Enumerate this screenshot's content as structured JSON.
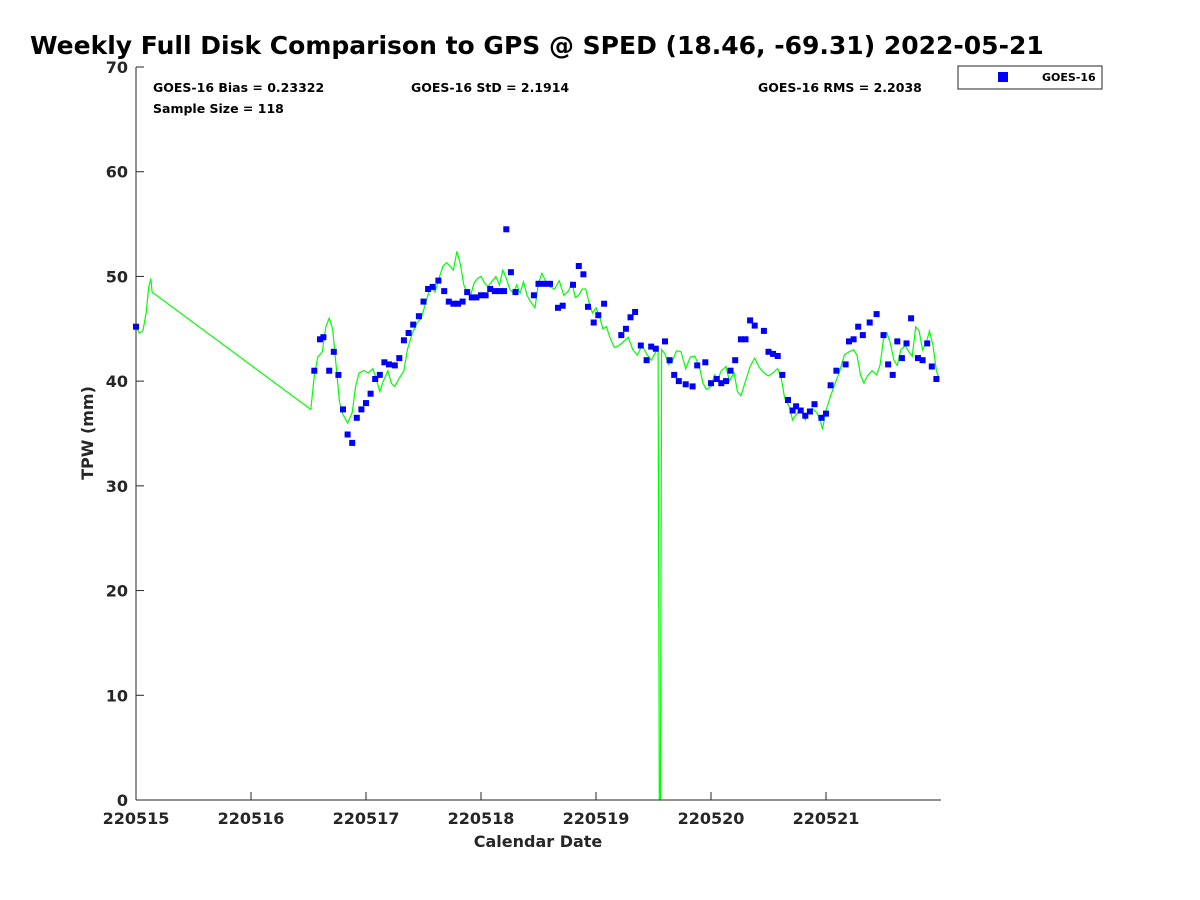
{
  "chart_data": {
    "type": "scatter",
    "title": "Weekly Full Disk Comparison to GPS @ SPED (18.46, -69.31) 2022-05-21",
    "xlabel": "Calendar Date",
    "ylabel": "TPW (mm)",
    "xlim": [
      0,
      7
    ],
    "ylim": [
      0,
      70
    ],
    "x_ticks": [
      0,
      1,
      2,
      3,
      4,
      5,
      6
    ],
    "x_tick_labels": [
      "220515",
      "220516",
      "220517",
      "220518",
      "220519",
      "220520",
      "220521"
    ],
    "y_ticks": [
      0,
      10,
      20,
      30,
      40,
      50,
      60,
      70
    ],
    "y_tick_labels": [
      "0",
      "10",
      "20",
      "30",
      "40",
      "50",
      "60",
      "70"
    ],
    "stats": {
      "bias": "GOES-16 Bias = 0.23322",
      "std": "GOES-16 StD = 2.1914",
      "rms": "GOES-16 RMS = 2.2038",
      "sample_size": "Sample Size = 118"
    },
    "legend": [
      {
        "name": "GOES-16",
        "marker": "square",
        "color": "#0000ff"
      }
    ],
    "series": [
      {
        "name": "GOES-16",
        "kind": "scatter",
        "color": "#0000ff",
        "points": [
          [
            0.0,
            45.2
          ],
          [
            1.55,
            41.0
          ],
          [
            1.6,
            44.0
          ],
          [
            1.63,
            44.2
          ],
          [
            1.68,
            41.0
          ],
          [
            1.72,
            42.8
          ],
          [
            1.76,
            40.6
          ],
          [
            1.8,
            37.3
          ],
          [
            1.84,
            34.9
          ],
          [
            1.88,
            34.1
          ],
          [
            1.92,
            36.5
          ],
          [
            1.96,
            37.3
          ],
          [
            2.0,
            37.9
          ],
          [
            2.04,
            38.8
          ],
          [
            2.08,
            40.2
          ],
          [
            2.12,
            40.6
          ],
          [
            2.16,
            41.8
          ],
          [
            2.2,
            41.6
          ],
          [
            2.25,
            41.5
          ],
          [
            2.29,
            42.2
          ],
          [
            2.33,
            43.9
          ],
          [
            2.37,
            44.6
          ],
          [
            2.41,
            45.4
          ],
          [
            2.46,
            46.2
          ],
          [
            2.5,
            47.6
          ],
          [
            2.54,
            48.8
          ],
          [
            2.58,
            49.0
          ],
          [
            2.63,
            49.6
          ],
          [
            2.68,
            48.6
          ],
          [
            2.72,
            47.6
          ],
          [
            2.76,
            47.4
          ],
          [
            2.8,
            47.4
          ],
          [
            2.84,
            47.6
          ],
          [
            2.88,
            48.5
          ],
          [
            2.92,
            48.0
          ],
          [
            2.96,
            48.0
          ],
          [
            3.0,
            48.2
          ],
          [
            3.04,
            48.2
          ],
          [
            3.08,
            48.8
          ],
          [
            3.12,
            48.6
          ],
          [
            3.16,
            48.6
          ],
          [
            3.2,
            48.6
          ],
          [
            3.22,
            54.5
          ],
          [
            3.26,
            50.4
          ],
          [
            3.3,
            48.5
          ],
          [
            3.46,
            48.2
          ],
          [
            3.5,
            49.3
          ],
          [
            3.55,
            49.3
          ],
          [
            3.6,
            49.3
          ],
          [
            3.67,
            47.0
          ],
          [
            3.71,
            47.2
          ],
          [
            3.8,
            49.2
          ],
          [
            3.85,
            51.0
          ],
          [
            3.89,
            50.2
          ],
          [
            3.93,
            47.1
          ],
          [
            3.98,
            45.6
          ],
          [
            4.02,
            46.3
          ],
          [
            4.07,
            47.4
          ],
          [
            4.22,
            44.4
          ],
          [
            4.26,
            45.0
          ],
          [
            4.3,
            46.1
          ],
          [
            4.34,
            46.6
          ],
          [
            4.39,
            43.4
          ],
          [
            4.44,
            42.0
          ],
          [
            4.48,
            43.3
          ],
          [
            4.52,
            43.1
          ],
          [
            4.6,
            43.8
          ],
          [
            4.64,
            42.0
          ],
          [
            4.68,
            40.6
          ],
          [
            4.72,
            40.0
          ],
          [
            4.78,
            39.7
          ],
          [
            4.84,
            39.5
          ],
          [
            4.88,
            41.5
          ],
          [
            4.95,
            41.8
          ],
          [
            5.0,
            39.8
          ],
          [
            5.05,
            40.2
          ],
          [
            5.09,
            39.8
          ],
          [
            5.13,
            40.0
          ],
          [
            5.17,
            41.0
          ],
          [
            5.21,
            42.0
          ],
          [
            5.26,
            44.0
          ],
          [
            5.3,
            44.0
          ],
          [
            5.34,
            45.8
          ],
          [
            5.38,
            45.3
          ],
          [
            5.46,
            44.8
          ],
          [
            5.5,
            42.8
          ],
          [
            5.54,
            42.6
          ],
          [
            5.58,
            42.4
          ],
          [
            5.62,
            40.6
          ],
          [
            5.67,
            38.2
          ],
          [
            5.71,
            37.2
          ],
          [
            5.74,
            37.6
          ],
          [
            5.78,
            37.2
          ],
          [
            5.82,
            36.7
          ],
          [
            5.86,
            37.1
          ],
          [
            5.9,
            37.8
          ],
          [
            5.96,
            36.5
          ],
          [
            6.0,
            36.9
          ],
          [
            6.04,
            39.6
          ],
          [
            6.09,
            41.0
          ],
          [
            6.17,
            41.6
          ],
          [
            6.2,
            43.8
          ],
          [
            6.24,
            44.0
          ],
          [
            6.28,
            45.2
          ],
          [
            6.32,
            44.4
          ],
          [
            6.38,
            45.6
          ],
          [
            6.44,
            46.4
          ],
          [
            6.5,
            44.4
          ],
          [
            6.54,
            41.6
          ],
          [
            6.58,
            40.6
          ],
          [
            6.62,
            43.8
          ],
          [
            6.66,
            42.2
          ],
          [
            6.7,
            43.6
          ],
          [
            6.74,
            46.0
          ],
          [
            6.8,
            42.2
          ],
          [
            6.84,
            42.0
          ],
          [
            6.88,
            43.6
          ],
          [
            6.92,
            41.4
          ],
          [
            6.96,
            40.2
          ]
        ]
      },
      {
        "name": "GPS",
        "kind": "line",
        "color": "#00ff00",
        "points": [
          [
            0.0,
            45.2
          ],
          [
            0.03,
            44.6
          ],
          [
            0.06,
            44.8
          ],
          [
            0.09,
            46.6
          ],
          [
            0.11,
            49.0
          ],
          [
            0.13,
            49.8
          ],
          [
            0.14,
            48.5
          ],
          [
            1.52,
            37.3
          ],
          [
            1.55,
            40.5
          ],
          [
            1.58,
            42.3
          ],
          [
            1.62,
            42.8
          ],
          [
            1.65,
            45.2
          ],
          [
            1.68,
            46.0
          ],
          [
            1.71,
            45.0
          ],
          [
            1.74,
            41.5
          ],
          [
            1.77,
            38.0
          ],
          [
            1.8,
            36.8
          ],
          [
            1.84,
            36.0
          ],
          [
            1.88,
            37.0
          ],
          [
            1.91,
            39.5
          ],
          [
            1.94,
            40.8
          ],
          [
            1.98,
            41.0
          ],
          [
            2.02,
            40.8
          ],
          [
            2.06,
            41.2
          ],
          [
            2.09,
            40.2
          ],
          [
            2.12,
            39.0
          ],
          [
            2.15,
            40.0
          ],
          [
            2.19,
            41.0
          ],
          [
            2.22,
            39.8
          ],
          [
            2.25,
            39.5
          ],
          [
            2.29,
            40.3
          ],
          [
            2.33,
            41.0
          ],
          [
            2.36,
            43.0
          ],
          [
            2.4,
            44.5
          ],
          [
            2.44,
            45.5
          ],
          [
            2.48,
            46.0
          ],
          [
            2.52,
            47.5
          ],
          [
            2.56,
            49.0
          ],
          [
            2.6,
            48.5
          ],
          [
            2.64,
            50.0
          ],
          [
            2.67,
            51.0
          ],
          [
            2.7,
            51.3
          ],
          [
            2.73,
            51.0
          ],
          [
            2.76,
            50.6
          ],
          [
            2.79,
            52.4
          ],
          [
            2.82,
            51.2
          ],
          [
            2.85,
            49.2
          ],
          [
            2.88,
            48.4
          ],
          [
            2.91,
            48.2
          ],
          [
            2.94,
            49.4
          ],
          [
            2.97,
            49.8
          ],
          [
            3.0,
            50.0
          ],
          [
            3.03,
            49.4
          ],
          [
            3.06,
            49.0
          ],
          [
            3.1,
            49.6
          ],
          [
            3.13,
            50.0
          ],
          [
            3.16,
            49.2
          ],
          [
            3.19,
            50.6
          ],
          [
            3.22,
            49.8
          ],
          [
            3.25,
            48.8
          ],
          [
            3.28,
            48.4
          ],
          [
            3.31,
            49.2
          ],
          [
            3.34,
            48.4
          ],
          [
            3.37,
            49.5
          ],
          [
            3.4,
            48.2
          ],
          [
            3.43,
            47.6
          ],
          [
            3.47,
            47.0
          ],
          [
            3.5,
            49.4
          ],
          [
            3.53,
            50.3
          ],
          [
            3.56,
            49.6
          ],
          [
            3.6,
            49.0
          ],
          [
            3.64,
            48.8
          ],
          [
            3.68,
            49.6
          ],
          [
            3.72,
            48.2
          ],
          [
            3.76,
            48.6
          ],
          [
            3.79,
            49.4
          ],
          [
            3.82,
            48.0
          ],
          [
            3.85,
            48.2
          ],
          [
            3.88,
            48.8
          ],
          [
            3.91,
            48.8
          ],
          [
            3.94,
            47.5
          ],
          [
            3.97,
            46.5
          ],
          [
            4.0,
            47.0
          ],
          [
            4.03,
            46.2
          ],
          [
            4.06,
            45.0
          ],
          [
            4.09,
            45.2
          ],
          [
            4.12,
            44.2
          ],
          [
            4.16,
            43.2
          ],
          [
            4.2,
            43.4
          ],
          [
            4.24,
            43.8
          ],
          [
            4.28,
            44.2
          ],
          [
            4.32,
            43.0
          ],
          [
            4.36,
            42.5
          ],
          [
            4.4,
            43.4
          ],
          [
            4.44,
            42.6
          ],
          [
            4.48,
            42.0
          ],
          [
            4.52,
            42.8
          ],
          [
            4.54,
            43.0
          ],
          [
            4.55,
            0.0
          ],
          [
            4.56,
            0.0
          ],
          [
            4.57,
            43.0
          ],
          [
            4.6,
            42.6
          ],
          [
            4.63,
            41.6
          ],
          [
            4.66,
            41.8
          ],
          [
            4.7,
            42.9
          ],
          [
            4.74,
            42.8
          ],
          [
            4.78,
            41.2
          ],
          [
            4.82,
            42.3
          ],
          [
            4.86,
            42.4
          ],
          [
            4.9,
            41.3
          ],
          [
            4.93,
            39.8
          ],
          [
            4.96,
            39.2
          ],
          [
            5.0,
            39.5
          ],
          [
            5.03,
            40.6
          ],
          [
            5.06,
            40.2
          ],
          [
            5.09,
            41.0
          ],
          [
            5.13,
            41.4
          ],
          [
            5.16,
            40.0
          ],
          [
            5.2,
            40.8
          ],
          [
            5.23,
            39.0
          ],
          [
            5.26,
            38.6
          ],
          [
            5.3,
            40.0
          ],
          [
            5.34,
            41.4
          ],
          [
            5.38,
            42.2
          ],
          [
            5.42,
            41.3
          ],
          [
            5.46,
            40.8
          ],
          [
            5.5,
            40.5
          ],
          [
            5.54,
            40.8
          ],
          [
            5.58,
            41.2
          ],
          [
            5.61,
            40.3
          ],
          [
            5.64,
            38.4
          ],
          [
            5.68,
            37.6
          ],
          [
            5.71,
            36.3
          ],
          [
            5.74,
            36.8
          ],
          [
            5.78,
            37.3
          ],
          [
            5.82,
            36.3
          ],
          [
            5.85,
            37.2
          ],
          [
            5.88,
            37.4
          ],
          [
            5.92,
            37.0
          ],
          [
            5.95,
            36.2
          ],
          [
            5.97,
            35.4
          ],
          [
            6.0,
            37.2
          ],
          [
            6.04,
            38.6
          ],
          [
            6.08,
            39.8
          ],
          [
            6.12,
            41.0
          ],
          [
            6.16,
            42.5
          ],
          [
            6.2,
            42.8
          ],
          [
            6.24,
            43.0
          ],
          [
            6.27,
            42.5
          ],
          [
            6.3,
            40.6
          ],
          [
            6.33,
            39.8
          ],
          [
            6.36,
            40.5
          ],
          [
            6.4,
            41.0
          ],
          [
            6.44,
            40.6
          ],
          [
            6.47,
            41.5
          ],
          [
            6.5,
            44.0
          ],
          [
            6.53,
            44.6
          ],
          [
            6.56,
            43.6
          ],
          [
            6.59,
            42.0
          ],
          [
            6.62,
            41.5
          ],
          [
            6.65,
            43.0
          ],
          [
            6.69,
            43.4
          ],
          [
            6.72,
            42.8
          ],
          [
            6.75,
            42.4
          ],
          [
            6.78,
            45.2
          ],
          [
            6.81,
            44.8
          ],
          [
            6.84,
            43.0
          ],
          [
            6.87,
            43.6
          ],
          [
            6.9,
            44.8
          ],
          [
            6.93,
            43.4
          ],
          [
            6.96,
            41.0
          ],
          [
            6.98,
            40.4
          ]
        ]
      }
    ]
  }
}
